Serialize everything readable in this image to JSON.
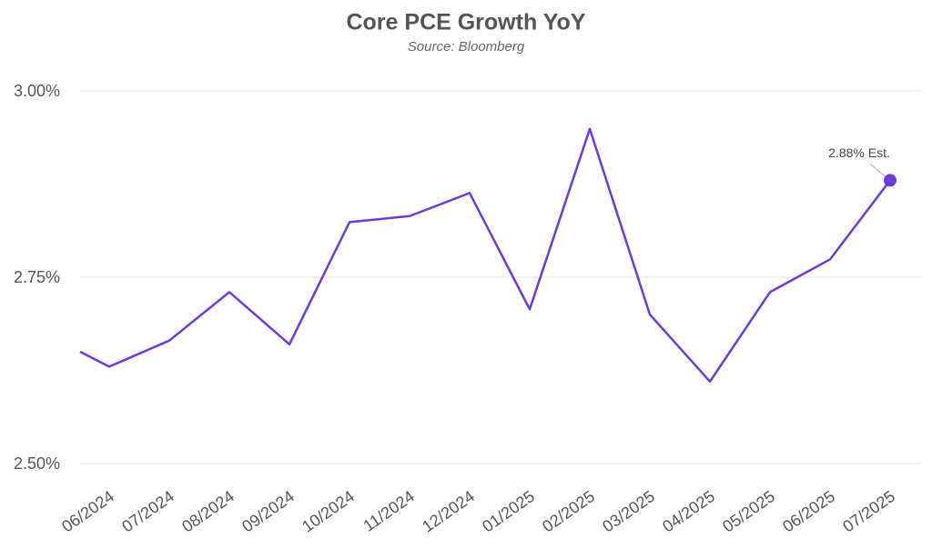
{
  "chart_data": {
    "type": "line",
    "title": "Core PCE Growth YoY",
    "subtitle": "Source: Bloomberg",
    "categories": [
      null,
      "06/2024",
      "07/2024",
      "08/2024",
      "09/2024",
      "10/2024",
      "11/2024",
      "12/2024",
      "01/2025",
      "02/2025",
      "03/2025",
      "04/2025",
      "05/2025",
      "06/2025",
      "07/2025"
    ],
    "series": [
      {
        "name": "Core PCE Growth YoY",
        "color": "#6d3bd6",
        "values": [
          2.65,
          2.63,
          2.665,
          2.73,
          2.66,
          2.824,
          2.832,
          2.863,
          2.707,
          2.949,
          2.7,
          2.61,
          2.73,
          2.774,
          2.88
        ],
        "value_labels": [
          null,
          null,
          null,
          null,
          null,
          null,
          null,
          null,
          null,
          null,
          null,
          null,
          null,
          null,
          "2.88% Est."
        ]
      }
    ],
    "ylim": [
      2.5,
      3.0
    ],
    "yticks": [
      {
        "value": 2.5,
        "label": "2.50%"
      },
      {
        "value": 2.75,
        "label": "2.75%"
      },
      {
        "value": 3.0,
        "label": "3.00%"
      }
    ],
    "grid": true
  }
}
